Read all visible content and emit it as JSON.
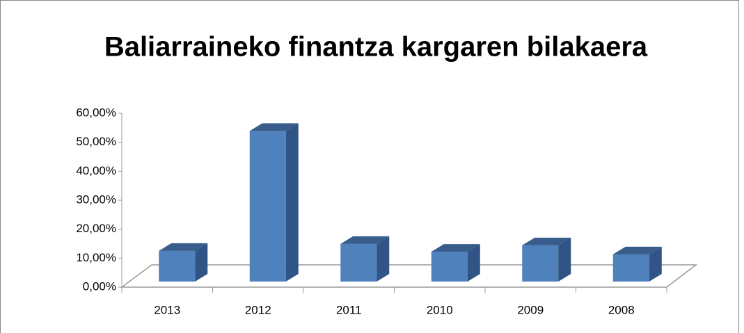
{
  "chart_data": {
    "type": "bar3d",
    "title": "Baliarraineko finantza kargaren bilakaera",
    "categories": [
      "2013",
      "2012",
      "2011",
      "2010",
      "2009",
      "2008"
    ],
    "values": [
      10.6,
      52,
      13,
      10.3,
      12.5,
      9.4
    ],
    "color": "#4f81bd",
    "ylim": [
      0,
      60
    ],
    "yticks": [
      {
        "value": 0,
        "label": "0,00%"
      },
      {
        "value": 10,
        "label": "10,00%"
      },
      {
        "value": 20,
        "label": "20,00%"
      },
      {
        "value": 30,
        "label": "30,00%"
      },
      {
        "value": 40,
        "label": "40,00%"
      },
      {
        "value": 50,
        "label": "50,00%"
      },
      {
        "value": 60,
        "label": "60,00%"
      }
    ]
  }
}
